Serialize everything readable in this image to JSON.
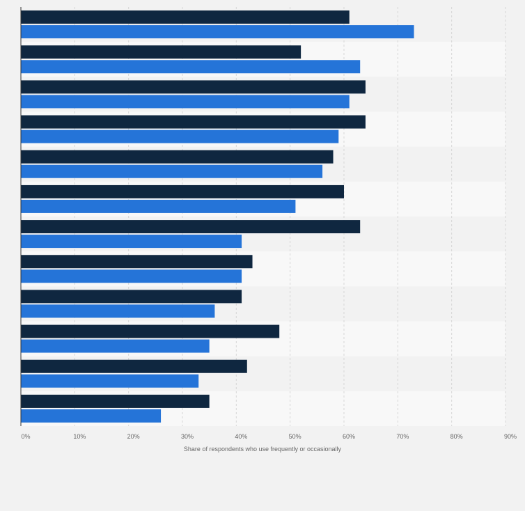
{
  "chart_data": {
    "type": "bar",
    "orientation": "horizontal",
    "xlabel": "Share of respondents who use frequently or occasionally",
    "xlim": [
      0,
      90
    ],
    "x_ticks": [
      "0%",
      "10%",
      "20%",
      "30%",
      "40%",
      "50%",
      "60%",
      "70%",
      "80%",
      "90%"
    ],
    "grid": true,
    "legend": "none",
    "categories": [
      "",
      "",
      "",
      "",
      "",
      "",
      "",
      "",
      "",
      "",
      "",
      ""
    ],
    "series": [
      {
        "color": "#0f2740",
        "values": [
          61,
          52,
          64,
          64,
          58,
          60,
          63,
          43,
          41,
          48,
          42,
          35
        ]
      },
      {
        "color": "#2574d8",
        "values": [
          73,
          63,
          61,
          59,
          56,
          51,
          41,
          41,
          36,
          35,
          33,
          26
        ]
      }
    ]
  }
}
